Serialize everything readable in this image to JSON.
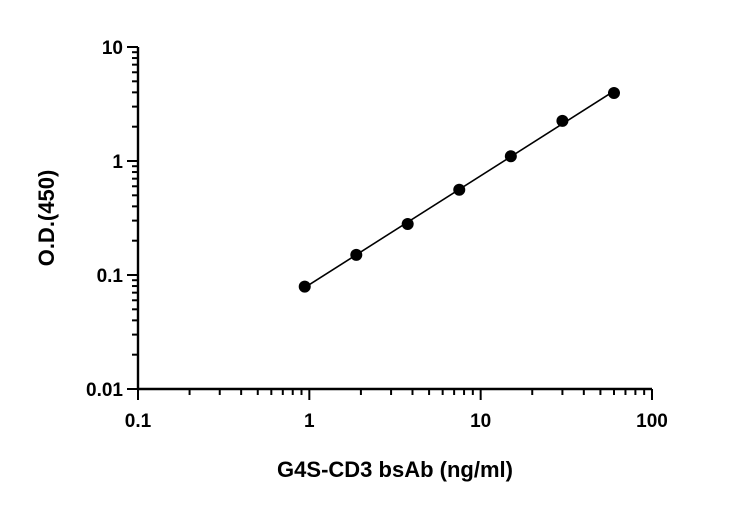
{
  "chart_data": {
    "type": "scatter",
    "xlabel": "G4S-CD3 bsAb (ng/ml)",
    "ylabel": "O.D.(450)",
    "xscale": "log",
    "yscale": "log",
    "xlim": [
      0.1,
      100
    ],
    "ylim": [
      0.01,
      10
    ],
    "grid": false,
    "legend": "none",
    "x_ticks": [
      "0.1",
      "1",
      "10",
      "100"
    ],
    "y_ticks": [
      "0.01",
      "0.1",
      "1",
      "10"
    ],
    "series": [
      {
        "x": [
          0.94,
          1.88,
          3.75,
          7.5,
          15,
          30,
          60
        ],
        "y": [
          0.079,
          0.15,
          0.28,
          0.56,
          1.1,
          2.25,
          3.95
        ],
        "fit_line": true
      }
    ],
    "colors": {
      "marker": "#000000",
      "line": "#000000",
      "axis": "#000000"
    }
  }
}
